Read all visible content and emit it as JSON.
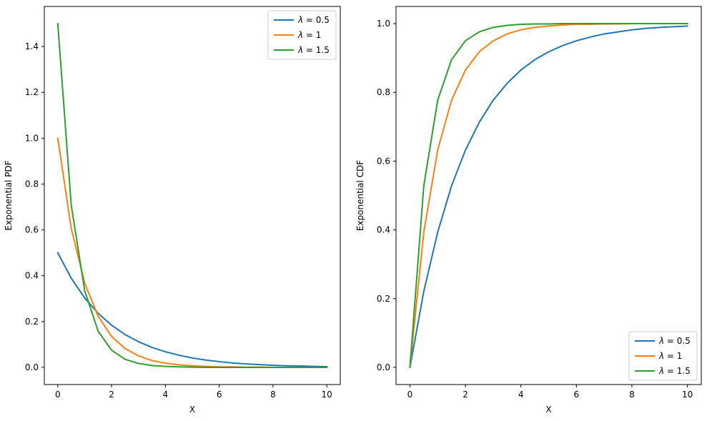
{
  "colors": {
    "series1": "#1f77b4",
    "series2": "#ff7f0e",
    "series3": "#2ca02c",
    "axis": "#000000",
    "background": "#ffffff"
  },
  "chart_data": [
    {
      "type": "line",
      "title": "",
      "xlabel": "X",
      "ylabel": "Exponential PDF",
      "xlim": [
        -0.5,
        10.5
      ],
      "ylim": [
        -0.075,
        1.575
      ],
      "xticks": [
        0,
        2,
        4,
        6,
        8,
        10
      ],
      "xtick_labels": [
        "0",
        "2",
        "4",
        "6",
        "8",
        "10"
      ],
      "yticks": [
        0.0,
        0.2,
        0.4,
        0.6,
        0.8,
        1.0,
        1.2,
        1.4
      ],
      "ytick_labels": [
        "0.0",
        "0.2",
        "0.4",
        "0.6",
        "0.8",
        "1.0",
        "1.2",
        "1.4"
      ],
      "grid": false,
      "legend_position": "top-right",
      "x": [
        0,
        0.5,
        1,
        1.5,
        2,
        2.5,
        3,
        3.5,
        4,
        4.5,
        5,
        5.5,
        6,
        6.5,
        7,
        7.5,
        8,
        8.5,
        9,
        9.5,
        10
      ],
      "series": [
        {
          "name": "λ = 0.5",
          "legend_symbol": "λ",
          "legend_value": "0.5",
          "color": "#1f77b4",
          "values": [
            0.5,
            0.389,
            0.303,
            0.236,
            0.184,
            0.143,
            0.112,
            0.087,
            0.068,
            0.053,
            0.041,
            0.032,
            0.025,
            0.019,
            0.015,
            0.012,
            0.009,
            0.007,
            0.006,
            0.004,
            0.003
          ]
        },
        {
          "name": "λ = 1",
          "legend_symbol": "λ",
          "legend_value": "1",
          "color": "#ff7f0e",
          "values": [
            1.0,
            0.607,
            0.368,
            0.223,
            0.135,
            0.082,
            0.05,
            0.03,
            0.018,
            0.011,
            0.007,
            0.004,
            0.002,
            0.002,
            0.001,
            0.001,
            0.0,
            0.0,
            0.0,
            0.0,
            0.0
          ]
        },
        {
          "name": "λ = 1.5",
          "legend_symbol": "λ",
          "legend_value": "1.5",
          "color": "#2ca02c",
          "values": [
            1.5,
            0.708,
            0.335,
            0.158,
            0.075,
            0.035,
            0.017,
            0.008,
            0.004,
            0.002,
            0.001,
            0.0,
            0.0,
            0.0,
            0.0,
            0.0,
            0.0,
            0.0,
            0.0,
            0.0,
            0.0
          ]
        }
      ]
    },
    {
      "type": "line",
      "title": "",
      "xlabel": "X",
      "ylabel": "Exponential CDF",
      "xlim": [
        -0.5,
        10.5
      ],
      "ylim": [
        -0.05,
        1.05
      ],
      "xticks": [
        0,
        2,
        4,
        6,
        8,
        10
      ],
      "xtick_labels": [
        "0",
        "2",
        "4",
        "6",
        "8",
        "10"
      ],
      "yticks": [
        0.0,
        0.2,
        0.4,
        0.6,
        0.8,
        1.0
      ],
      "ytick_labels": [
        "0.0",
        "0.2",
        "0.4",
        "0.6",
        "0.8",
        "1.0"
      ],
      "grid": false,
      "legend_position": "bottom-right",
      "x": [
        0,
        0.5,
        1,
        1.5,
        2,
        2.5,
        3,
        3.5,
        4,
        4.5,
        5,
        5.5,
        6,
        6.5,
        7,
        7.5,
        8,
        8.5,
        9,
        9.5,
        10
      ],
      "series": [
        {
          "name": "λ = 0.5",
          "legend_symbol": "λ",
          "legend_value": "0.5",
          "color": "#1f77b4",
          "values": [
            0.0,
            0.221,
            0.393,
            0.528,
            0.632,
            0.713,
            0.777,
            0.826,
            0.865,
            0.895,
            0.918,
            0.936,
            0.95,
            0.961,
            0.97,
            0.976,
            0.982,
            0.986,
            0.989,
            0.991,
            0.993
          ]
        },
        {
          "name": "λ = 1",
          "legend_symbol": "λ",
          "legend_value": "1",
          "color": "#ff7f0e",
          "values": [
            0.0,
            0.393,
            0.632,
            0.777,
            0.865,
            0.918,
            0.95,
            0.97,
            0.982,
            0.989,
            0.993,
            0.996,
            0.998,
            0.998,
            0.999,
            0.999,
            1.0,
            1.0,
            1.0,
            1.0,
            1.0
          ]
        },
        {
          "name": "λ = 1.5",
          "legend_symbol": "λ",
          "legend_value": "1.5",
          "color": "#2ca02c",
          "values": [
            0.0,
            0.528,
            0.777,
            0.895,
            0.95,
            0.976,
            0.989,
            0.995,
            0.998,
            0.999,
            0.999,
            1.0,
            1.0,
            1.0,
            1.0,
            1.0,
            1.0,
            1.0,
            1.0,
            1.0,
            1.0
          ]
        }
      ]
    }
  ]
}
